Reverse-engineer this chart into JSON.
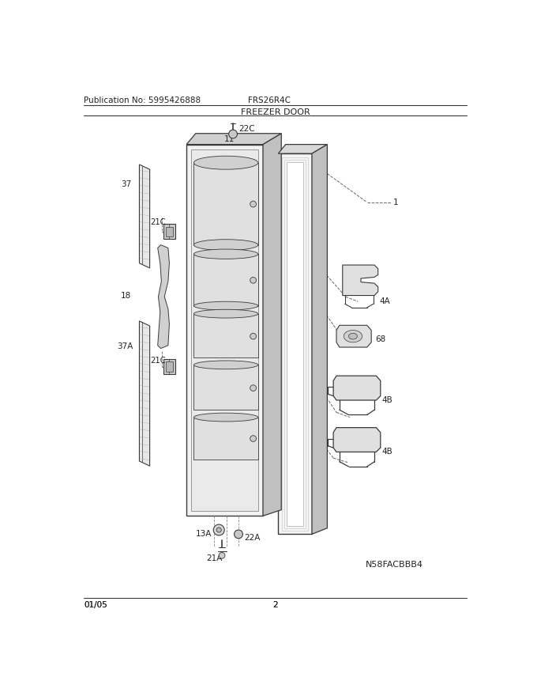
{
  "title": "FREEZER DOOR",
  "pub_no": "Publication No: 5995426888",
  "model": "FRS26R4C",
  "date": "01/05",
  "page": "2",
  "catalog_no": "N58FACBBB4",
  "bg_color": "#ffffff",
  "lc": "#3a3a3a",
  "lgray": "#d8d8d8",
  "mgray": "#b8b8b8",
  "dgray": "#909090"
}
